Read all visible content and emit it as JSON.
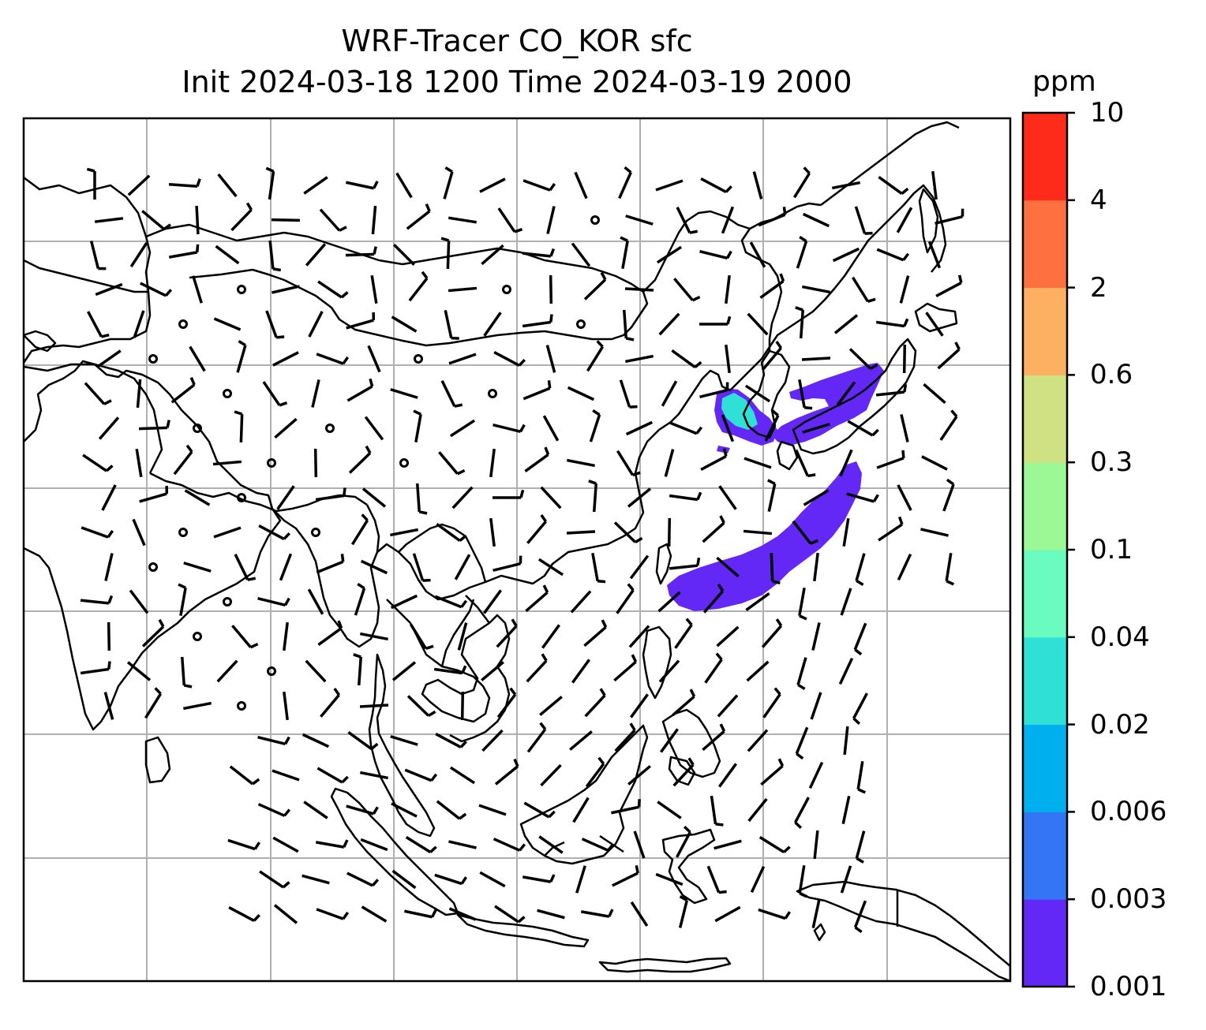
{
  "title": {
    "line1": "WRF-Tracer CO_KOR sfc",
    "line2": "Init 2024-03-18 1200 Time 2024-03-19 2000"
  },
  "colorbar": {
    "unit": "ppm",
    "levels": [
      "0.001",
      "0.003",
      "0.006",
      "0.02",
      "0.04",
      "0.1",
      "0.3",
      "0.6",
      "2",
      "4",
      "10"
    ],
    "colors": [
      "#6428f6",
      "#3375f5",
      "#00b0ee",
      "#2fe0d6",
      "#69fbc0",
      "#9cf894",
      "#cfe182",
      "#fdb062",
      "#ff7040",
      "#ff2b1a"
    ]
  },
  "map": {
    "gridlines": true,
    "coastline_color": "#000000",
    "plume_color": "#6428f6",
    "plume_core_color": "#2fe0d6"
  }
}
